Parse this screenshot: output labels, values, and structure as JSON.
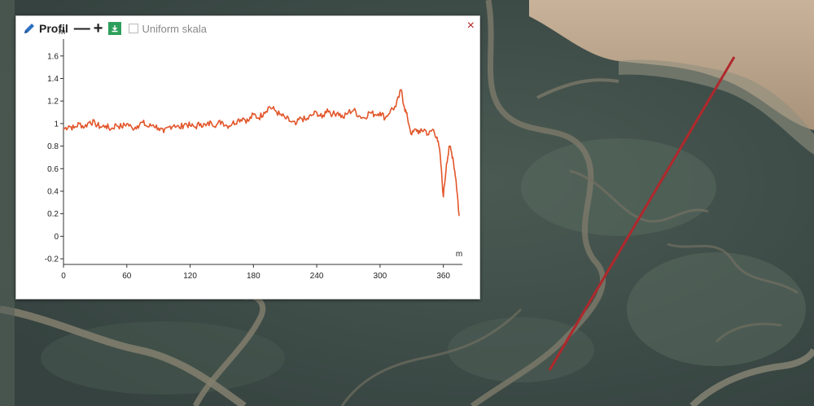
{
  "panel": {
    "title": "Profil",
    "zoom_out_label": "—",
    "zoom_in_label": "+",
    "uniform_scale_label": "Uniform skala",
    "uniform_scale_checked": false,
    "close_label": "×"
  },
  "colors": {
    "profile_line": "#e2562b",
    "map_line": "#b0282c",
    "download_button": "#2e9f5c",
    "close_icon": "#b22222"
  },
  "icons": {
    "edit": "pencil-icon",
    "download": "download-icon",
    "close": "close-icon"
  },
  "chart_data": {
    "type": "line",
    "xlabel": "m",
    "ylabel": "m",
    "xlim": [
      0,
      378
    ],
    "ylim": [
      -0.25,
      1.75
    ],
    "xticks": [
      0,
      60,
      120,
      180,
      240,
      300,
      360
    ],
    "yticks": [
      -0.2,
      0,
      0.2,
      0.4,
      0.6,
      0.8,
      1,
      1.2,
      1.4,
      1.6
    ],
    "ytick_labels": [
      "-0.2",
      "0",
      "0.2",
      "0.4",
      "0.6",
      "0.8",
      "1",
      "1.2",
      "1.4",
      "1.6"
    ],
    "grid": false,
    "series": [
      {
        "x": [
          0,
          5,
          10,
          15,
          20,
          25,
          30,
          35,
          40,
          45,
          50,
          55,
          60,
          65,
          70,
          75,
          80,
          85,
          90,
          95,
          100,
          105,
          110,
          115,
          120,
          125,
          130,
          135,
          140,
          145,
          150,
          155,
          160,
          165,
          170,
          175,
          180,
          185,
          190,
          195,
          200,
          205,
          210,
          215,
          220,
          225,
          230,
          235,
          240,
          245,
          250,
          255,
          260,
          265,
          270,
          275,
          280,
          285,
          290,
          295,
          300,
          305,
          310,
          315,
          320,
          323,
          326,
          330,
          334,
          338,
          342,
          346,
          350,
          354,
          357,
          360,
          363,
          366,
          369,
          372,
          375
        ],
        "values": [
          0.95,
          0.98,
          0.96,
          1.0,
          0.97,
          1.02,
          1.0,
          0.97,
          0.98,
          0.95,
          0.99,
          0.97,
          1.0,
          0.96,
          0.98,
          1.01,
          0.97,
          0.99,
          0.96,
          0.92,
          0.97,
          0.99,
          0.96,
          1.0,
          0.98,
          0.97,
          1.0,
          0.98,
          1.01,
          0.99,
          1.02,
          0.98,
          1.0,
          1.03,
          1.05,
          1.02,
          1.08,
          1.05,
          1.1,
          1.15,
          1.12,
          1.08,
          1.05,
          1.02,
          0.99,
          1.05,
          1.03,
          1.07,
          1.1,
          1.05,
          1.13,
          1.08,
          1.1,
          1.05,
          1.1,
          1.12,
          1.07,
          1.05,
          1.1,
          1.08,
          1.1,
          1.05,
          1.12,
          1.15,
          1.3,
          1.15,
          1.05,
          0.9,
          0.95,
          0.92,
          0.95,
          0.9,
          0.95,
          0.88,
          0.72,
          0.35,
          0.65,
          0.8,
          0.7,
          0.5,
          0.18
        ]
      }
    ]
  }
}
